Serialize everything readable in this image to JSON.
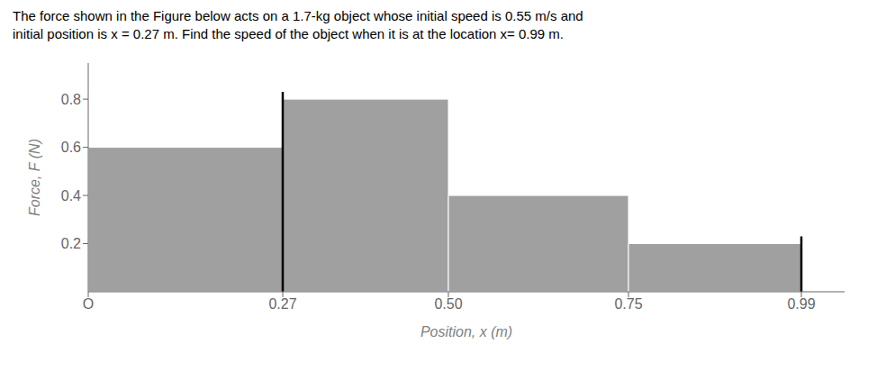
{
  "chart_data": {
    "type": "histogram",
    "title": "The force shown in the Figure below acts on a 1.7-kg object whose initial speed is 0.55 m/s and",
    "subtitle": "initial position is x = 0.27 m.  Find the speed of the object when it is at the location x= 0.99 m.",
    "x_label": "Position, x (m)",
    "y_label": "Force, F (N)",
    "bins": [
      0.0,
      0.27,
      0.5,
      0.75,
      0.99
    ],
    "values": [
      0.6,
      0.8,
      0.4,
      0.2
    ],
    "color": "#a0a0a0",
    "vlines": [
      {
        "x": 0.27,
        "value": 0.83,
        "color": "#000000"
      },
      {
        "x": 0.99,
        "value": 0.23,
        "color": "#000000"
      }
    ],
    "xlim": [
      0.0,
      1.05
    ],
    "ylim": [
      0.0,
      0.95
    ],
    "xticks": [
      {
        "value": 0.0,
        "label": "O"
      },
      0.27,
      {
        "value": 0.5,
        "label": "0.50"
      },
      0.75,
      0.99
    ],
    "yticks": [
      0.2,
      0.4,
      0.6,
      0.8
    ],
    "grid": false
  }
}
